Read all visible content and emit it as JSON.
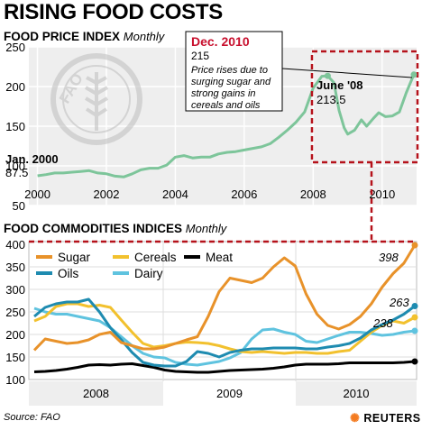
{
  "title": "RISING FOOD COSTS",
  "source": "Source: FAO",
  "brand": "REUTERS",
  "fao_logo_text": "FAO · FIAT PANIS",
  "chart_data": [
    {
      "type": "line",
      "heading": "FOOD PRICE INDEX",
      "heading_sub": "Monthly",
      "ylim": [
        50,
        250
      ],
      "yticks": [
        50,
        100,
        150,
        200,
        250
      ],
      "xticks": [
        "2000",
        "2002",
        "2004",
        "2006",
        "2008",
        "2010"
      ],
      "xrange": [
        1999.75,
        2011.0
      ],
      "color": "#7dc59a",
      "annotations": {
        "start": {
          "label": "Jan. 2000",
          "value": "87.5"
        },
        "peak": {
          "label": "June '08",
          "value": "213.5"
        },
        "latest": {
          "label": "Dec. 2010",
          "value": "215",
          "note": "Price rises due to surging sugar and strong gains in cereals and oils"
        }
      },
      "series": [
        {
          "points": [
            [
              2000.0,
              87.5
            ],
            [
              2000.25,
              89
            ],
            [
              2000.5,
              91
            ],
            [
              2000.75,
              91
            ],
            [
              2001.0,
              92
            ],
            [
              2001.25,
              93
            ],
            [
              2001.5,
              94
            ],
            [
              2001.75,
              91
            ],
            [
              2002.0,
              90
            ],
            [
              2002.25,
              87
            ],
            [
              2002.5,
              86
            ],
            [
              2002.75,
              90
            ],
            [
              2003.0,
              95
            ],
            [
              2003.25,
              97
            ],
            [
              2003.5,
              97
            ],
            [
              2003.75,
              101
            ],
            [
              2004.0,
              111
            ],
            [
              2004.25,
              113
            ],
            [
              2004.5,
              110
            ],
            [
              2004.75,
              111
            ],
            [
              2005.0,
              111
            ],
            [
              2005.25,
              115
            ],
            [
              2005.5,
              117
            ],
            [
              2005.75,
              118
            ],
            [
              2006.0,
              120
            ],
            [
              2006.25,
              122
            ],
            [
              2006.5,
              124
            ],
            [
              2006.75,
              128
            ],
            [
              2007.0,
              136
            ],
            [
              2007.25,
              145
            ],
            [
              2007.5,
              155
            ],
            [
              2007.75,
              168
            ],
            [
              2008.0,
              198
            ],
            [
              2008.25,
              213
            ],
            [
              2008.42,
              213.5
            ],
            [
              2008.6,
              205
            ],
            [
              2008.75,
              170
            ],
            [
              2008.9,
              148
            ],
            [
              2009.0,
              140
            ],
            [
              2009.2,
              145
            ],
            [
              2009.4,
              158
            ],
            [
              2009.55,
              150
            ],
            [
              2009.75,
              160
            ],
            [
              2009.9,
              167
            ],
            [
              2010.1,
              162
            ],
            [
              2010.3,
              163
            ],
            [
              2010.5,
              168
            ],
            [
              2010.7,
              192
            ],
            [
              2010.92,
              215
            ]
          ]
        }
      ]
    },
    {
      "type": "line",
      "heading": "FOOD COMMODITIES INDICES",
      "heading_sub": "Monthly",
      "ylim": [
        100,
        400
      ],
      "yticks": [
        100,
        150,
        200,
        250,
        300,
        350,
        400
      ],
      "xticks": [
        "2008",
        "2009",
        "2010"
      ],
      "value_labels": [
        {
          "series": "Sugar",
          "text": "398"
        },
        {
          "series": "Oils",
          "text": "263"
        },
        {
          "series": "Cereals",
          "text": "238"
        }
      ],
      "series": [
        {
          "name": "Sugar",
          "color": "#e8922a",
          "values": [
            165,
            190,
            185,
            180,
            182,
            188,
            200,
            205,
            182,
            175,
            168,
            168,
            172,
            180,
            188,
            195,
            240,
            295,
            325,
            320,
            315,
            325,
            350,
            370,
            352,
            290,
            245,
            220,
            212,
            222,
            240,
            268,
            305,
            335,
            358,
            398
          ]
        },
        {
          "name": "Oils",
          "color": "#1e8bb0",
          "values": [
            240,
            260,
            268,
            272,
            272,
            278,
            250,
            215,
            188,
            160,
            138,
            132,
            130,
            130,
            140,
            162,
            158,
            150,
            160,
            165,
            168,
            168,
            170,
            170,
            170,
            168,
            168,
            172,
            175,
            180,
            192,
            210,
            222,
            232,
            245,
            263
          ]
        },
        {
          "name": "Cereals",
          "color": "#f2c12e",
          "values": [
            230,
            240,
            262,
            268,
            268,
            262,
            265,
            260,
            232,
            205,
            180,
            172,
            175,
            180,
            183,
            182,
            180,
            175,
            168,
            162,
            160,
            162,
            160,
            158,
            160,
            160,
            158,
            158,
            162,
            165,
            185,
            205,
            220,
            230,
            225,
            238
          ]
        },
        {
          "name": "Meat",
          "color": "#000000",
          "values": [
            117,
            118,
            120,
            123,
            127,
            132,
            133,
            132,
            134,
            135,
            131,
            127,
            121,
            118,
            117,
            116,
            116,
            118,
            120,
            121,
            122,
            123,
            125,
            128,
            132,
            134,
            134,
            134,
            135,
            137,
            137,
            137,
            137,
            137,
            138,
            140
          ]
        },
        {
          "name": "Dairy",
          "color": "#5fc3df",
          "values": [
            258,
            250,
            245,
            245,
            240,
            235,
            230,
            215,
            195,
            175,
            158,
            150,
            148,
            138,
            134,
            132,
            136,
            140,
            148,
            160,
            190,
            210,
            212,
            205,
            200,
            185,
            182,
            190,
            198,
            205,
            205,
            202,
            198,
            200,
            205,
            208
          ]
        }
      ]
    }
  ]
}
